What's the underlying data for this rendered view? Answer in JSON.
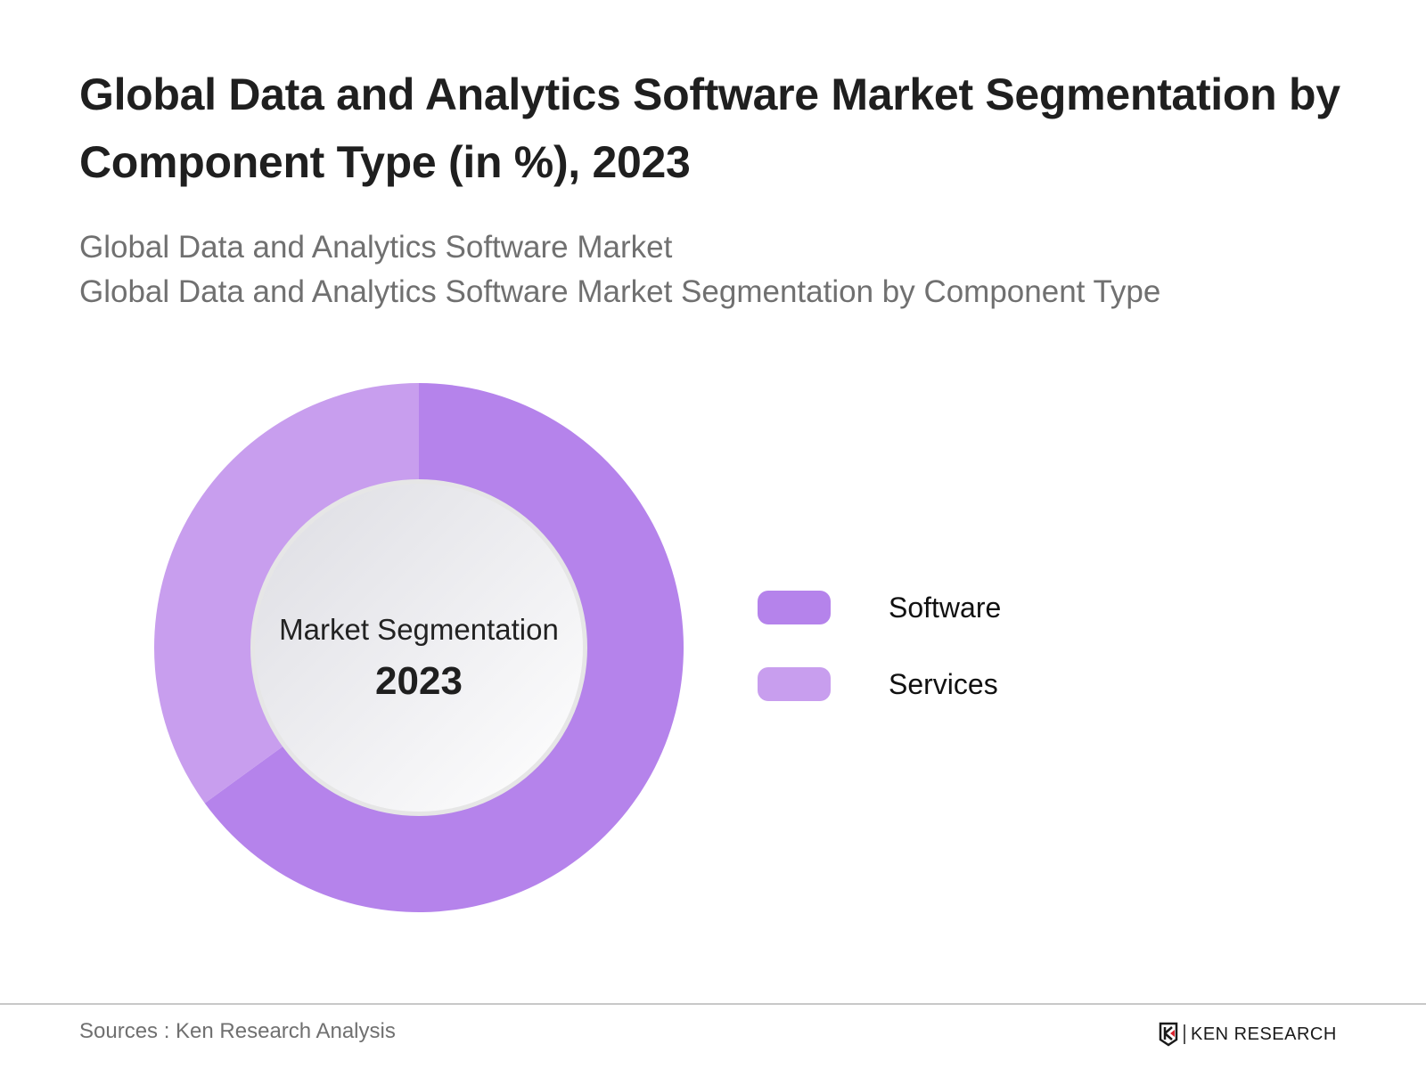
{
  "header": {
    "title": "Global Data and Analytics Software Market Segmentation by Component Type (in %), 2023",
    "subtitle_1": "Global Data and Analytics Software Market",
    "subtitle_2": "Global Data and Analytics Software Market Segmentation by Component Type"
  },
  "chart_data": {
    "type": "pie",
    "subtype": "donut",
    "title": "Global Data and Analytics Software Market Segmentation by Component Type (in %), 2023",
    "center_label": "Market Segmentation",
    "center_year": "2023",
    "categories": [
      "Software",
      "Services"
    ],
    "values": [
      65,
      35
    ],
    "colors": [
      "#b583eb",
      "#c89eee"
    ],
    "legend_position": "right",
    "start_angle": "top, clockwise"
  },
  "footer": {
    "sources": "Sources : Ken Research Analysis",
    "logo_text": "KEN RESEARCH"
  }
}
